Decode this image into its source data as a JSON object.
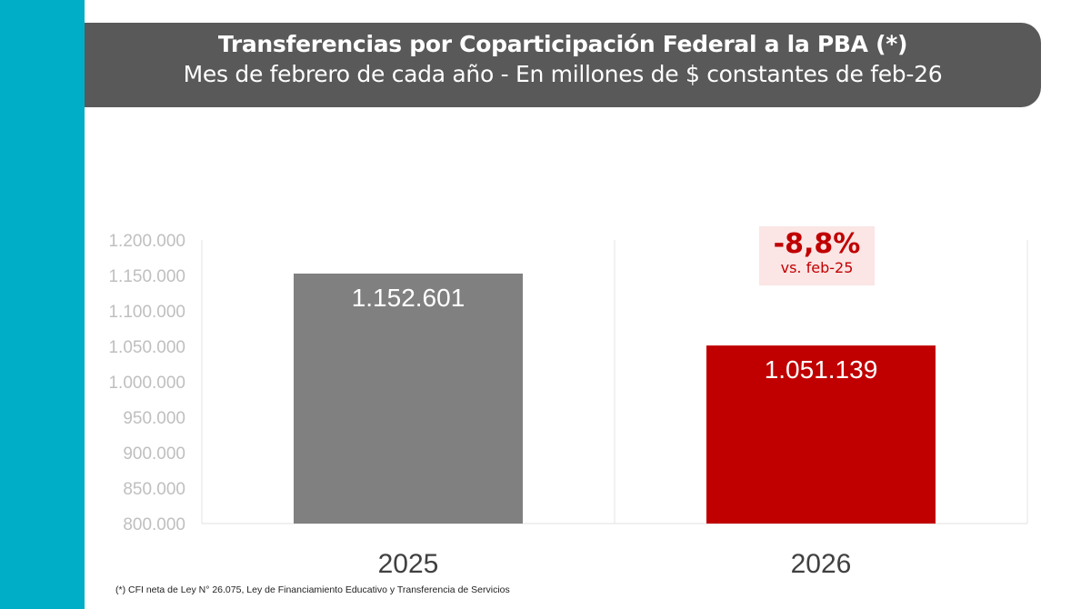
{
  "title": "Transferencias por Coparticipación Federal a la PBA (*)",
  "subtitle": "Mes de febrero de cada año - En millones de $ constantes de feb-26",
  "footnote": "(*) CFI neta de Ley N° 26.075, Ley de Financiamiento Educativo y Transferencia de Servicios",
  "colors": {
    "accent_strip": "#00AEC7",
    "banner": "#595959",
    "bar_2025": "#808080",
    "bar_2026": "#C00000",
    "badge_bg": "#FBE5E5"
  },
  "chart_data": {
    "type": "bar",
    "categories": [
      "2025",
      "2026"
    ],
    "values": [
      1152601,
      1051139
    ],
    "value_labels": [
      "1.152.601",
      "1.051.139"
    ],
    "ylim": [
      800000,
      1200000
    ],
    "yticks": [
      800000,
      850000,
      900000,
      950000,
      1000000,
      1050000,
      1100000,
      1150000,
      1200000
    ],
    "ytick_labels": [
      "800.000",
      "850.000",
      "900.000",
      "950.000",
      "1.000.000",
      "1.050.000",
      "1.100.000",
      "1.150.000",
      "1.200.000"
    ],
    "grid": false,
    "annotation": {
      "value": "-8,8%",
      "text": "vs. feb-25"
    }
  }
}
